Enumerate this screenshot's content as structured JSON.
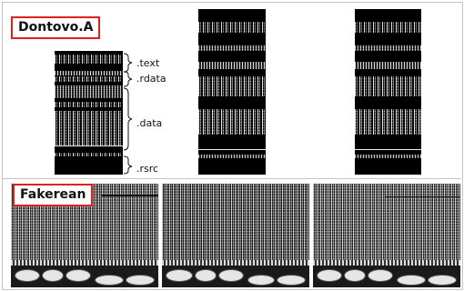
{
  "groups": {
    "top_label": "Dontovo.A",
    "bottom_label": "Fakerean"
  },
  "sections": {
    "text": ".text",
    "rdata": ".rdata",
    "data": ".data",
    "rsrc": ".rsrc"
  }
}
